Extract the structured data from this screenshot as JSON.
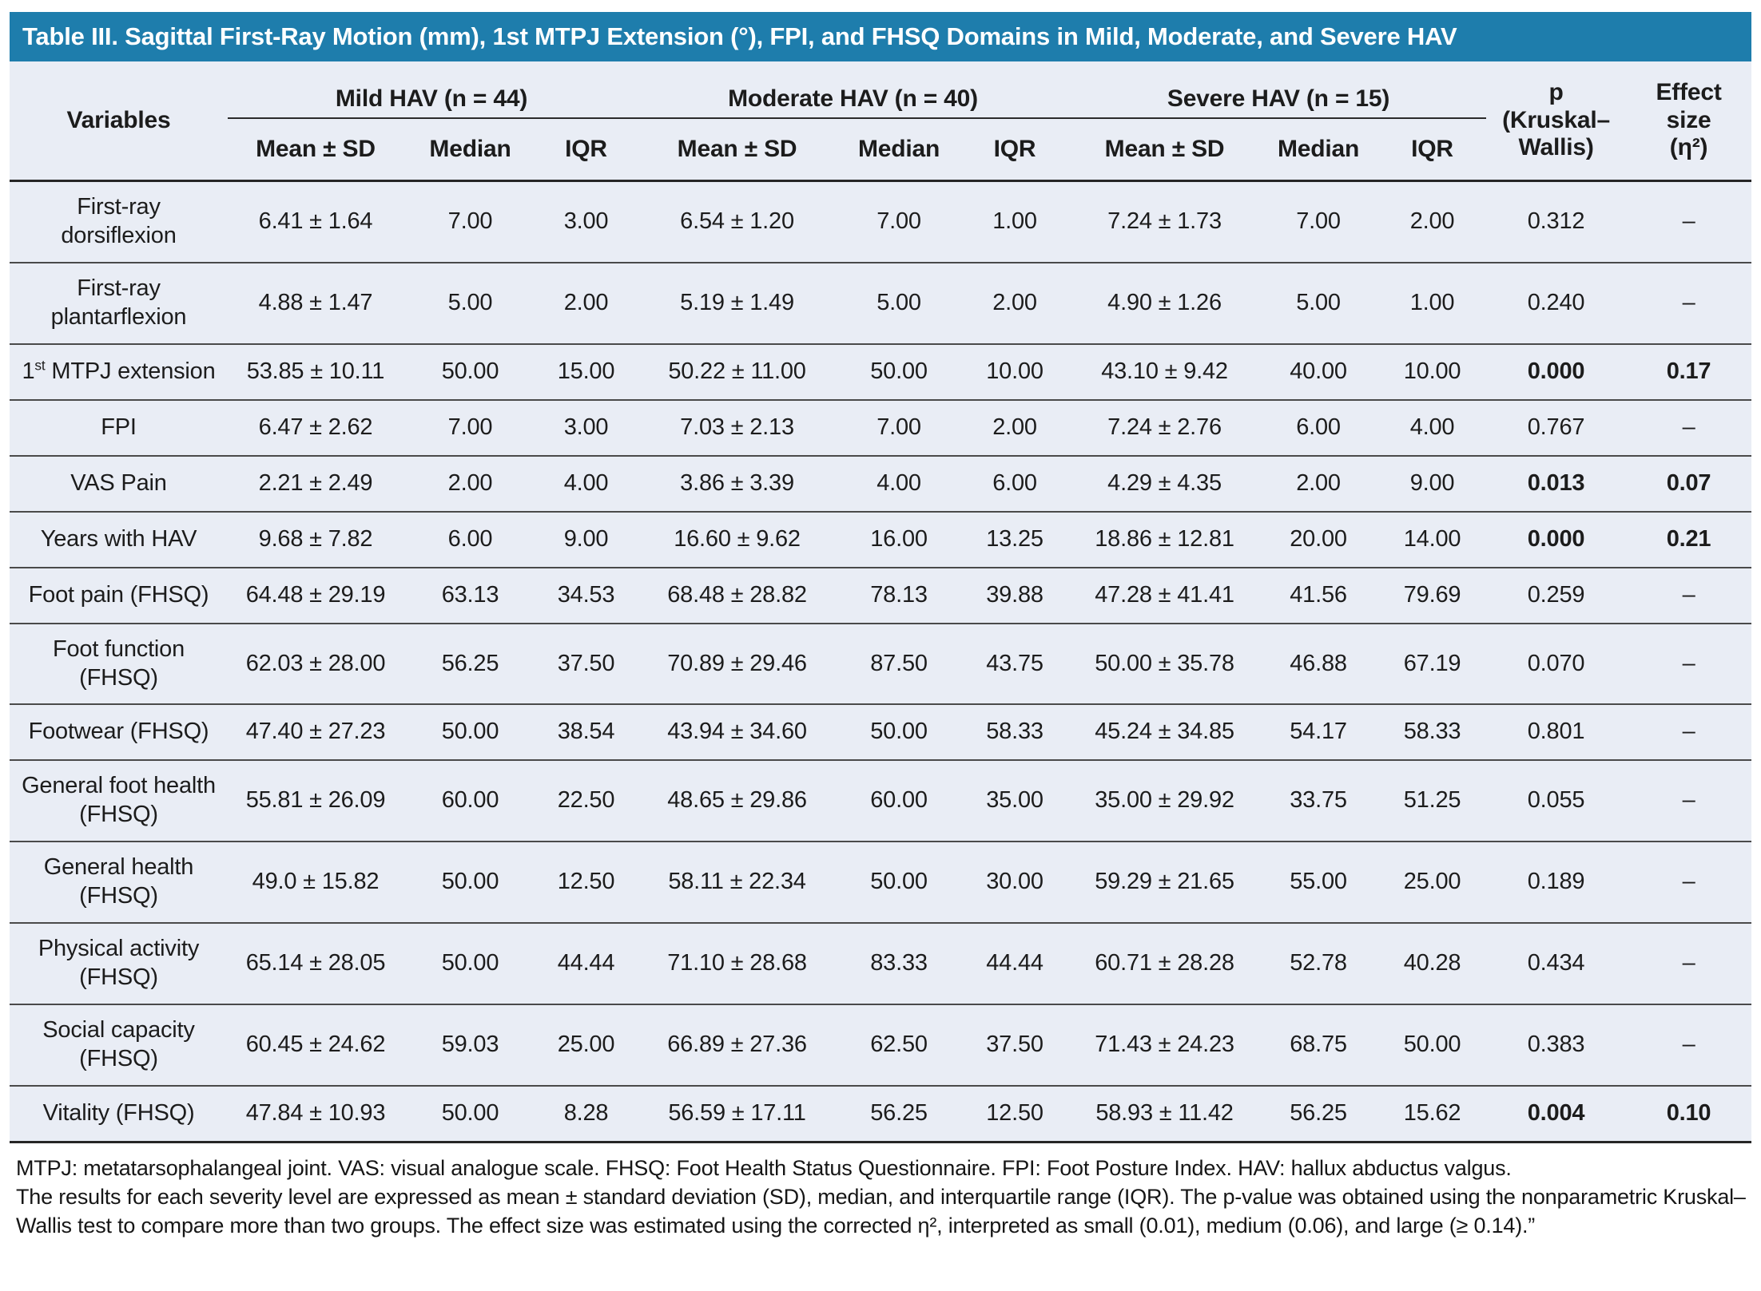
{
  "table": {
    "title": "Table III. Sagittal First-Ray Motion (mm), 1st MTPJ Extension (°), FPI, and FHSQ Domains in Mild, Moderate, and Severe HAV",
    "header": {
      "variables_label": "Variables",
      "groups": [
        {
          "label": "Mild HAV (n = 44)",
          "sub": [
            "Mean ± SD",
            "Median",
            "IQR"
          ]
        },
        {
          "label": "Moderate HAV (n = 40)",
          "sub": [
            "Mean ± SD",
            "Median",
            "IQR"
          ]
        },
        {
          "label": "Severe HAV (n = 15)",
          "sub": [
            "Mean ± SD",
            "Median",
            "IQR"
          ]
        }
      ],
      "p_header_lines": [
        "p",
        "(Kruskal–",
        "Wallis)"
      ],
      "effect_header_lines": [
        "Effect",
        "size",
        "(η²)"
      ]
    },
    "rows": [
      {
        "label": {
          "pre": "First-ray dorsiflexion"
        },
        "values": [
          "6.41 ± 1.64",
          "7.00",
          "3.00",
          "6.54 ± 1.20",
          "7.00",
          "1.00",
          "7.24 ± 1.73",
          "7.00",
          "2.00"
        ],
        "p": "0.312",
        "effect": "–",
        "bold": false
      },
      {
        "label": {
          "pre": "First-ray plantarflexion"
        },
        "values": [
          "4.88 ± 1.47",
          "5.00",
          "2.00",
          "5.19 ± 1.49",
          "5.00",
          "2.00",
          "4.90 ± 1.26",
          "5.00",
          "1.00"
        ],
        "p": "0.240",
        "effect": "–",
        "bold": false
      },
      {
        "label": {
          "pre": "1",
          "sup": "st",
          "post": " MTPJ extension"
        },
        "values": [
          "53.85 ± 10.11",
          "50.00",
          "15.00",
          "50.22 ± 11.00",
          "50.00",
          "10.00",
          "43.10 ± 9.42",
          "40.00",
          "10.00"
        ],
        "p": "0.000",
        "effect": "0.17",
        "bold": true
      },
      {
        "label": {
          "pre": "FPI"
        },
        "values": [
          "6.47 ± 2.62",
          "7.00",
          "3.00",
          "7.03 ± 2.13",
          "7.00",
          "2.00",
          "7.24 ± 2.76",
          "6.00",
          "4.00"
        ],
        "p": "0.767",
        "effect": "–",
        "bold": false
      },
      {
        "label": {
          "pre": "VAS Pain"
        },
        "values": [
          "2.21 ± 2.49",
          "2.00",
          "4.00",
          "3.86 ± 3.39",
          "4.00",
          "6.00",
          "4.29 ± 4.35",
          "2.00",
          "9.00"
        ],
        "p": "0.013",
        "effect": "0.07",
        "bold": true
      },
      {
        "label": {
          "pre": "Years with HAV"
        },
        "values": [
          "9.68 ± 7.82",
          "6.00",
          "9.00",
          "16.60 ± 9.62",
          "16.00",
          "13.25",
          "18.86 ± 12.81",
          "20.00",
          "14.00"
        ],
        "p": "0.000",
        "effect": "0.21",
        "bold": true
      },
      {
        "label": {
          "pre": "Foot pain (FHSQ)"
        },
        "values": [
          "64.48 ± 29.19",
          "63.13",
          "34.53",
          "68.48 ± 28.82",
          "78.13",
          "39.88",
          "47.28 ± 41.41",
          "41.56",
          "79.69"
        ],
        "p": "0.259",
        "effect": "–",
        "bold": false
      },
      {
        "label": {
          "pre": "Foot function (FHSQ)"
        },
        "values": [
          "62.03 ± 28.00",
          "56.25",
          "37.50",
          "70.89 ± 29.46",
          "87.50",
          "43.75",
          "50.00 ± 35.78",
          "46.88",
          "67.19"
        ],
        "p": "0.070",
        "effect": "–",
        "bold": false
      },
      {
        "label": {
          "pre": "Footwear (FHSQ)"
        },
        "values": [
          "47.40 ± 27.23",
          "50.00",
          "38.54",
          "43.94 ± 34.60",
          "50.00",
          "58.33",
          "45.24 ± 34.85",
          "54.17",
          "58.33"
        ],
        "p": "0.801",
        "effect": "–",
        "bold": false
      },
      {
        "label": {
          "pre": "General foot health (FHSQ)"
        },
        "values": [
          "55.81 ± 26.09",
          "60.00",
          "22.50",
          "48.65 ± 29.86",
          "60.00",
          "35.00",
          "35.00 ± 29.92",
          "33.75",
          "51.25"
        ],
        "p": "0.055",
        "effect": "–",
        "bold": false
      },
      {
        "label": {
          "pre": "General health (FHSQ)"
        },
        "values": [
          "49.0 ± 15.82",
          "50.00",
          "12.50",
          "58.11 ± 22.34",
          "50.00",
          "30.00",
          "59.29 ± 21.65",
          "55.00",
          "25.00"
        ],
        "p": "0.189",
        "effect": "–",
        "bold": false
      },
      {
        "label": {
          "pre": "Physical activity (FHSQ)"
        },
        "values": [
          "65.14 ± 28.05",
          "50.00",
          "44.44",
          "71.10 ± 28.68",
          "83.33",
          "44.44",
          "60.71 ± 28.28",
          "52.78",
          "40.28"
        ],
        "p": "0.434",
        "effect": "–",
        "bold": false
      },
      {
        "label": {
          "pre": "Social capacity (FHSQ)"
        },
        "values": [
          "60.45 ± 24.62",
          "59.03",
          "25.00",
          "66.89 ± 27.36",
          "62.50",
          "37.50",
          "71.43 ± 24.23",
          "68.75",
          "50.00"
        ],
        "p": "0.383",
        "effect": "–",
        "bold": false
      },
      {
        "label": {
          "pre": "Vitality (FHSQ)"
        },
        "values": [
          "47.84 ± 10.93",
          "50.00",
          "8.28",
          "56.59 ± 17.11",
          "56.25",
          "12.50",
          "58.93 ± 11.42",
          "56.25",
          "15.62"
        ],
        "p": "0.004",
        "effect": "0.10",
        "bold": true
      }
    ],
    "footnotes": [
      "MTPJ: metatarsophalangeal joint. VAS: visual analogue scale. FHSQ: Foot Health Status Questionnaire. FPI: Foot Posture Index. HAV: hallux abductus valgus.",
      "The results for each severity level are expressed as mean ± standard deviation (SD), median, and interquartile range (IQR). The p-value was obtained using the nonparametric Kruskal–Wallis test to compare more than two groups. The effect size was estimated using the corrected η², interpreted as small (0.01), medium (0.06), and large (≥ 0.14).”"
    ],
    "colors": {
      "title_bar_blue": "#1e7dac",
      "table_background": "#e9edf5",
      "dark_rule": "#262626",
      "row_rule": "#4a4a4a"
    }
  }
}
